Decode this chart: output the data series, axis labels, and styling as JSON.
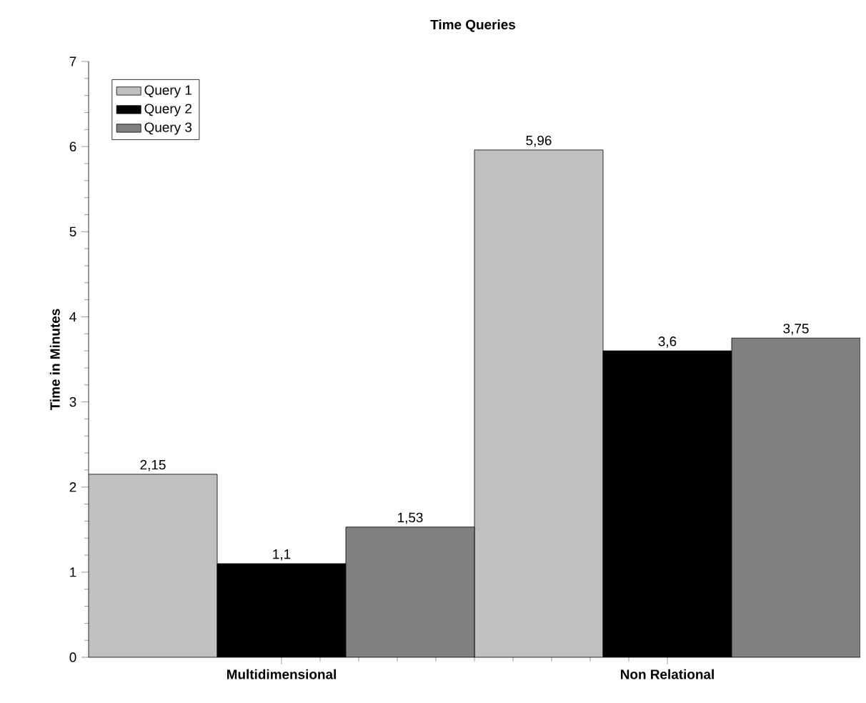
{
  "chart_data": {
    "type": "bar",
    "title": "Time Queries",
    "ylabel": "Time in Minutes",
    "categories": [
      "Multidimensional",
      "Non Relational"
    ],
    "series": [
      {
        "name": "Query 1",
        "color": "#c0c0c0",
        "values": [
          2.15,
          5.96
        ],
        "value_labels": [
          "2,15",
          "5,96"
        ]
      },
      {
        "name": "Query 2",
        "color": "#000000",
        "values": [
          1.1,
          3.6
        ],
        "value_labels": [
          "1,1",
          "3,6"
        ]
      },
      {
        "name": "Query 3",
        "color": "#808080",
        "values": [
          1.53,
          3.75
        ],
        "value_labels": [
          "1,53",
          "3,75"
        ]
      }
    ],
    "ylim": [
      0,
      7
    ],
    "yticks": [
      0,
      1,
      2,
      3,
      4,
      5,
      6,
      7
    ],
    "grid": false,
    "legend": "top left"
  }
}
